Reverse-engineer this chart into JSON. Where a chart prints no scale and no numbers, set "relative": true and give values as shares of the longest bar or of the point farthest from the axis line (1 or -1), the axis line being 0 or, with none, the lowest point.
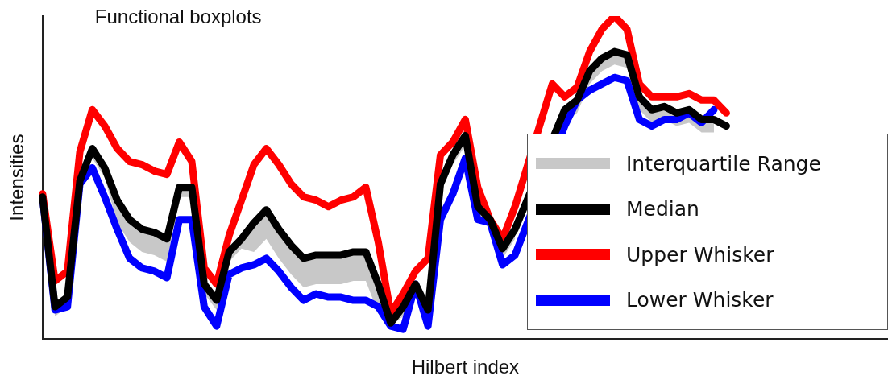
{
  "chart_data": {
    "type": "line",
    "title": "Functional boxplots",
    "xlabel": "Hilbert index",
    "ylabel": "Intensities",
    "relative": true,
    "legend": "bottom right",
    "grid": false,
    "marker": "none",
    "line_style": "solid",
    "annotations": [
      "Interquartile Range"
    ],
    "categories": [
      null,
      null,
      null,
      null,
      null,
      null,
      null,
      null,
      null,
      null,
      null,
      null,
      null,
      null,
      null,
      null,
      null,
      null,
      null,
      null,
      null,
      null,
      null,
      null,
      null,
      null,
      null,
      null,
      null,
      null,
      null,
      null,
      null,
      null,
      null,
      null,
      null,
      null,
      null,
      null,
      null,
      null,
      null,
      null,
      null,
      null,
      null,
      null,
      null,
      null,
      null,
      null,
      null,
      null,
      null,
      null,
      null,
      null,
      null,
      null,
      null,
      null,
      null,
      null,
      null,
      null,
      null,
      null,
      null
    ],
    "series": [
      {
        "name": "Median",
        "color": "#000000",
        "values": [
          0.44,
          0.1,
          0.13,
          0.49,
          0.59,
          0.53,
          0.43,
          0.37,
          0.34,
          0.33,
          0.31,
          0.47,
          0.47,
          0.17,
          0.12,
          0.27,
          0.31,
          0.36,
          0.4,
          0.34,
          0.29,
          0.25,
          0.26,
          0.26,
          0.26,
          0.27,
          0.27,
          0.17,
          0.05,
          0.1,
          0.17,
          0.09,
          0.48,
          0.57,
          0.63,
          0.41,
          0.37,
          0.28,
          0.34,
          null,
          null,
          null,
          0.71,
          0.74,
          0.83,
          0.87,
          0.89,
          0.88,
          0.75,
          0.71,
          0.72,
          0.7,
          0.71,
          0.68,
          0.68,
          0.66,
          null,
          null,
          null,
          null,
          null,
          null,
          null,
          null,
          null,
          null,
          null,
          null,
          null
        ],
        "upper": [
          0.45,
          0.11,
          0.14,
          0.5,
          0.6,
          0.54,
          0.44,
          0.38,
          0.35,
          0.34,
          0.32,
          0.48,
          0.48,
          0.18,
          0.13,
          0.28,
          0.32,
          0.37,
          0.41,
          0.35,
          0.3,
          0.26,
          0.27,
          0.27,
          0.27,
          0.28,
          0.28,
          0.18,
          0.06,
          0.11,
          0.18,
          0.1,
          0.49,
          0.58,
          0.64,
          0.42,
          0.38,
          0.29,
          0.35,
          null,
          null,
          null,
          0.72,
          0.75,
          0.84,
          0.88,
          0.9,
          0.89,
          0.76,
          0.72,
          0.73,
          0.71,
          0.72,
          0.69,
          0.69,
          null,
          null,
          null,
          null,
          null,
          null,
          null,
          null,
          null,
          null,
          null,
          null,
          null,
          null
        ],
        "lower": [
          0.41,
          0.07,
          0.1,
          0.46,
          0.56,
          0.5,
          0.36,
          0.3,
          0.27,
          0.26,
          0.24,
          0.44,
          0.44,
          0.14,
          0.09,
          0.24,
          0.28,
          0.27,
          0.31,
          0.25,
          0.2,
          0.16,
          0.17,
          0.17,
          0.17,
          0.18,
          0.18,
          0.08,
          0.04,
          0.07,
          0.14,
          0.06,
          0.45,
          0.54,
          0.6,
          0.38,
          0.34,
          0.25,
          0.31,
          null,
          null,
          null,
          0.67,
          0.7,
          0.79,
          0.83,
          0.85,
          0.84,
          0.71,
          0.67,
          0.68,
          0.66,
          0.67,
          0.64,
          0.64,
          null,
          null,
          null,
          null,
          null,
          null,
          null,
          null,
          null,
          null,
          null,
          null,
          null,
          null
        ]
      },
      {
        "name": "Upper Whisker",
        "color": "#ff0000",
        "values": [
          0.45,
          0.18,
          0.21,
          0.58,
          0.71,
          0.66,
          0.59,
          0.55,
          0.54,
          0.52,
          0.51,
          0.61,
          0.55,
          0.22,
          0.17,
          0.32,
          0.43,
          0.54,
          0.59,
          0.54,
          0.48,
          0.44,
          0.43,
          0.41,
          0.43,
          0.44,
          0.47,
          0.3,
          0.08,
          0.14,
          0.21,
          0.25,
          0.57,
          0.61,
          0.68,
          0.47,
          0.37,
          0.31,
          0.41,
          null,
          null,
          0.79,
          0.75,
          0.78,
          0.89,
          0.96,
          1.0,
          0.96,
          0.79,
          0.75,
          0.75,
          0.75,
          0.76,
          0.74,
          0.74,
          0.7,
          null,
          null,
          null,
          null,
          null,
          null,
          null,
          null,
          null,
          null,
          null,
          null,
          null
        ]
      },
      {
        "name": "Lower Whisker",
        "color": "#0000ff",
        "values": [
          0.44,
          0.09,
          0.1,
          0.48,
          0.53,
          0.44,
          0.34,
          0.25,
          0.22,
          0.21,
          0.19,
          0.37,
          0.37,
          0.1,
          0.04,
          0.2,
          0.22,
          0.23,
          0.25,
          0.21,
          0.16,
          0.12,
          0.14,
          0.13,
          0.13,
          0.12,
          0.12,
          0.1,
          0.04,
          0.03,
          0.17,
          0.04,
          0.37,
          0.45,
          0.56,
          0.37,
          0.36,
          0.23,
          0.26,
          null,
          null,
          null,
          0.66,
          0.74,
          0.77,
          0.79,
          0.81,
          0.8,
          0.68,
          0.66,
          0.68,
          0.68,
          0.7,
          0.67,
          0.71,
          null,
          null,
          null,
          null,
          null,
          null,
          null,
          null,
          null,
          null,
          null,
          null,
          null,
          null
        ]
      }
    ]
  }
}
